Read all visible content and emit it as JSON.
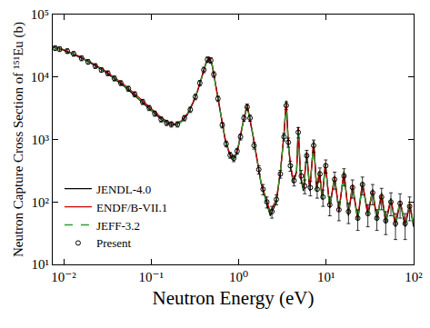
{
  "chart_data": {
    "type": "line",
    "x_label": "Neutron Energy (eV)",
    "y_label": "Neutron Capture Cross Section of ¹⁵¹Eu (b)",
    "log": true,
    "grid": false,
    "legend": "lower left",
    "xlim": [
      0.0075,
      100
    ],
    "ylim": [
      10,
      100000
    ],
    "xticks": [
      {
        "value": 0.01,
        "label": "10⁻²"
      },
      {
        "value": 0.1,
        "label": "10⁻¹"
      },
      {
        "value": 1,
        "label": "10⁰"
      },
      {
        "value": 10,
        "label": "10¹"
      },
      {
        "value": 100,
        "label": "10²"
      }
    ],
    "yticks": [
      {
        "value": 10,
        "label": "10¹"
      },
      {
        "value": 100,
        "label": "10²"
      },
      {
        "value": 1000,
        "label": "10³"
      },
      {
        "value": 10000,
        "label": "10⁴"
      },
      {
        "value": 100000,
        "label": "10⁵"
      }
    ],
    "series": [
      {
        "name": "JENDL-4.0",
        "type": "line",
        "color": "#000000",
        "line_style": "solid",
        "x": [
          0.0075,
          0.01,
          0.015,
          0.02,
          0.03,
          0.05,
          0.07,
          0.1,
          0.13,
          0.16,
          0.19,
          0.22,
          0.26,
          0.3,
          0.34,
          0.38,
          0.42,
          0.46,
          0.5,
          0.55,
          0.62,
          0.7,
          0.78,
          0.85,
          0.92,
          1.0,
          1.1,
          1.25,
          1.45,
          1.6,
          1.8,
          2.0,
          2.3,
          2.7,
          3.0,
          3.3,
          3.5,
          3.7,
          3.9,
          4.2,
          4.6,
          4.8,
          5.1,
          5.5,
          6.0,
          6.5,
          7.2,
          7.8,
          8.4,
          9.0,
          9.8,
          11,
          12.5,
          14,
          16,
          18,
          20,
          23,
          26,
          30,
          34,
          38,
          43,
          48,
          55,
          62,
          70,
          80,
          90,
          100
        ],
        "values": [
          30000,
          27000,
          21000,
          17000,
          12000,
          7000,
          4600,
          2900,
          2100,
          1750,
          1700,
          1900,
          2500,
          3800,
          6000,
          10000,
          16000,
          20000,
          15000,
          7000,
          2500,
          1000,
          600,
          480,
          520,
          800,
          1600,
          3500,
          1200,
          500,
          200,
          120,
          60,
          100,
          300,
          1200,
          4000,
          800,
          400,
          200,
          300,
          1500,
          250,
          150,
          600,
          150,
          900,
          150,
          300,
          110,
          400,
          80,
          250,
          70,
          300,
          60,
          180,
          50,
          200,
          60,
          150,
          50,
          130,
          45,
          110,
          40,
          100,
          40,
          90,
          40
        ]
      },
      {
        "name": "ENDF/B-VII.1",
        "type": "line",
        "color": "#cc0000",
        "line_style": "solid",
        "x": [
          0.0075,
          0.01,
          0.015,
          0.02,
          0.03,
          0.05,
          0.07,
          0.1,
          0.13,
          0.16,
          0.19,
          0.22,
          0.26,
          0.3,
          0.34,
          0.38,
          0.42,
          0.46,
          0.5,
          0.55,
          0.62,
          0.7,
          0.78,
          0.85,
          0.92,
          1.0,
          1.1,
          1.25,
          1.45,
          1.6,
          1.8,
          2.0,
          2.3,
          2.7,
          3.0,
          3.3,
          3.5,
          3.7,
          3.9,
          4.2,
          4.6,
          4.8,
          5.1,
          5.5,
          6.0,
          6.5,
          7.2,
          7.8,
          8.4,
          9.0,
          9.8,
          11,
          12.5,
          14,
          16,
          18,
          20,
          23,
          26,
          30,
          34,
          38,
          43,
          48,
          55,
          62,
          70,
          80,
          90,
          100
        ],
        "values": [
          30500,
          27500,
          21500,
          17500,
          12500,
          7400,
          4900,
          3100,
          2250,
          1850,
          1780,
          1980,
          2600,
          3900,
          6100,
          10200,
          16500,
          21000,
          15500,
          7200,
          2600,
          1050,
          630,
          510,
          550,
          830,
          1650,
          3600,
          1250,
          520,
          210,
          130,
          70,
          110,
          310,
          1250,
          4200,
          850,
          420,
          210,
          320,
          1600,
          260,
          160,
          640,
          160,
          950,
          160,
          320,
          115,
          420,
          85,
          260,
          75,
          310,
          65,
          190,
          55,
          210,
          65,
          160,
          55,
          140,
          50,
          115,
          45,
          105,
          45,
          95,
          45
        ]
      },
      {
        "name": "JEFF-3.2",
        "type": "line",
        "color": "#2e9e2e",
        "line_style": "dash",
        "x": [
          0.0075,
          0.01,
          0.015,
          0.02,
          0.03,
          0.05,
          0.07,
          0.1,
          0.13,
          0.16,
          0.19,
          0.22,
          0.26,
          0.3,
          0.34,
          0.38,
          0.42,
          0.46,
          0.5,
          0.55,
          0.62,
          0.7,
          0.78,
          0.85,
          0.92,
          1.0,
          1.1,
          1.25,
          1.45,
          1.6,
          1.8,
          2.0,
          2.3,
          2.7,
          3.0,
          3.3,
          3.5,
          3.7,
          3.9,
          4.2,
          4.6,
          4.8,
          5.1,
          5.5,
          6.0,
          6.5,
          7.2,
          7.8,
          8.4,
          9.0,
          9.8,
          11,
          12.5,
          14,
          16,
          18,
          20,
          23,
          26,
          30,
          34,
          38,
          43,
          48,
          55,
          62,
          70,
          80,
          90,
          100
        ],
        "values": [
          30000,
          27000,
          21200,
          17200,
          12200,
          7200,
          4700,
          3000,
          2150,
          1780,
          1730,
          1930,
          2550,
          3850,
          6050,
          10100,
          16200,
          20500,
          15200,
          7100,
          2550,
          1020,
          610,
          490,
          530,
          810,
          1620,
          3550,
          1220,
          510,
          205,
          125,
          65,
          105,
          305,
          1220,
          4100,
          820,
          410,
          205,
          310,
          1550,
          255,
          155,
          620,
          155,
          920,
          155,
          310,
          112,
          410,
          82,
          255,
          72,
          305,
          62,
          185,
          52,
          205,
          62,
          155,
          52,
          135,
          47,
          112,
          42,
          102,
          42,
          92,
          42
        ]
      },
      {
        "name": "Present",
        "type": "scatter",
        "color": "#000000",
        "marker": "open circle",
        "x": [
          0.008,
          0.009,
          0.011,
          0.013,
          0.016,
          0.019,
          0.023,
          0.027,
          0.032,
          0.038,
          0.045,
          0.055,
          0.065,
          0.08,
          0.095,
          0.11,
          0.13,
          0.15,
          0.17,
          0.2,
          0.24,
          0.28,
          0.32,
          0.36,
          0.4,
          0.44,
          0.48,
          0.52,
          0.58,
          0.65,
          0.72,
          0.8,
          0.88,
          0.96,
          1.05,
          1.15,
          1.25,
          1.35,
          1.5,
          1.7,
          1.9,
          2.1,
          2.4,
          2.7,
          3.0,
          3.3,
          3.5,
          3.7,
          3.9,
          4.3,
          4.8,
          5.2,
          5.7,
          6.0,
          6.6,
          7.2,
          7.9,
          8.5,
          9.2,
          9.9,
          11,
          12.5,
          14,
          16,
          18,
          20,
          23,
          26,
          30,
          34,
          38,
          43,
          48,
          55,
          62,
          70,
          80,
          90
        ],
        "values": [
          29000,
          28000,
          26000,
          23500,
          20000,
          17500,
          15000,
          13000,
          11500,
          9500,
          8000,
          6500,
          5300,
          4000,
          3200,
          2600,
          2100,
          1850,
          1750,
          1750,
          2200,
          3000,
          4800,
          8000,
          13000,
          19000,
          18500,
          11000,
          4500,
          1700,
          850,
          560,
          500,
          650,
          1100,
          2200,
          3300,
          2200,
          800,
          330,
          160,
          100,
          70,
          110,
          280,
          1100,
          3500,
          900,
          380,
          220,
          1300,
          260,
          180,
          550,
          170,
          800,
          160,
          280,
          120,
          380,
          90,
          230,
          75,
          260,
          70,
          170,
          55,
          190,
          65,
          140,
          55,
          120,
          50,
          100,
          45,
          95,
          45,
          85
        ],
        "errors": [
          2500,
          2400,
          2200,
          2000,
          1800,
          1500,
          1300,
          1100,
          1000,
          850,
          700,
          600,
          500,
          380,
          300,
          250,
          200,
          180,
          170,
          170,
          220,
          300,
          480,
          800,
          1300,
          1900,
          1900,
          1100,
          450,
          170,
          90,
          60,
          60,
          70,
          120,
          250,
          400,
          250,
          100,
          50,
          30,
          20,
          15,
          20,
          40,
          150,
          500,
          150,
          70,
          40,
          250,
          60,
          45,
          120,
          45,
          180,
          45,
          70,
          35,
          90,
          30,
          70,
          25,
          80,
          25,
          55,
          20,
          60,
          25,
          50,
          20,
          45,
          20,
          40,
          20,
          40,
          20,
          35
        ]
      }
    ]
  }
}
